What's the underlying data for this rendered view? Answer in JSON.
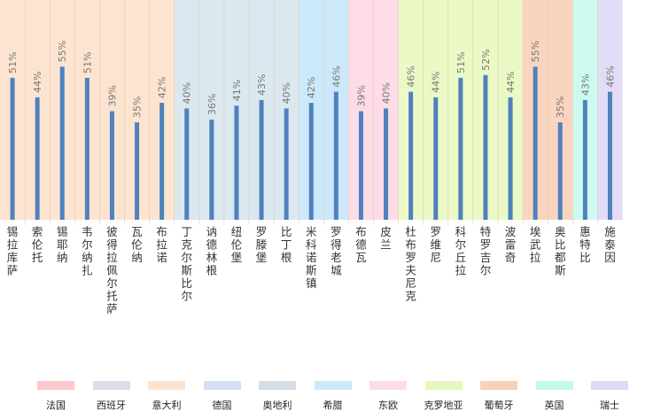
{
  "chart_data": {
    "type": "bar",
    "categories": [
      "锡拉库萨",
      "索伦托",
      "锡耶纳",
      "韦尔纳扎",
      "彼得拉佩尔托萨",
      "瓦伦纳",
      "布拉诺",
      "丁克尔斯比尔",
      "讷德林根",
      "纽伦堡",
      "罗滕堡",
      "比丁根",
      "米科诺斯镇",
      "罗得老城",
      "布德瓦",
      "皮兰",
      "杜布罗夫尼克",
      "罗维尼",
      "科尔丘拉",
      "特罗吉尔",
      "波雷奇",
      "埃武拉",
      "奥比都斯",
      "惠特比",
      "施泰因"
    ],
    "values": [
      51,
      44,
      55,
      51,
      39,
      35,
      42,
      40,
      36,
      41,
      43,
      40,
      42,
      46,
      39,
      40,
      46,
      44,
      51,
      52,
      44,
      55,
      35,
      43,
      46
    ],
    "value_labels": [
      "51%",
      "44%",
      "55%",
      "51%",
      "39%",
      "35%",
      "42%",
      "40%",
      "36%",
      "41%",
      "43%",
      "40%",
      "42%",
      "46%",
      "39%",
      "40%",
      "46%",
      "44%",
      "51%",
      "52%",
      "44%",
      "55%",
      "35%",
      "43%",
      "46%"
    ],
    "ylim": [
      0,
      60
    ],
    "bar_color": "#4f81bd",
    "groups": [
      {
        "name": "意大利",
        "start": 0,
        "count": 7,
        "color": "#fde4d0"
      },
      {
        "name": "德国",
        "start": 7,
        "count": 5,
        "color": "#dbe8f0"
      },
      {
        "name": "希腊",
        "start": 12,
        "count": 2,
        "color": "#cce9fb"
      },
      {
        "name": "东欧",
        "start": 14,
        "count": 2,
        "color": "#fddce8"
      },
      {
        "name": "克罗地亚",
        "start": 16,
        "count": 5,
        "color": "#eaf9c6"
      },
      {
        "name": "葡萄牙",
        "start": 21,
        "count": 2,
        "color": "#f9d5bf"
      },
      {
        "name": "英国",
        "start": 23,
        "count": 1,
        "color": "#cdfaf0"
      },
      {
        "name": "瑞士",
        "start": 24,
        "count": 1,
        "color": "#e3dcf6"
      }
    ],
    "legend": [
      {
        "label": "法国",
        "color": "#fbc9cc"
      },
      {
        "label": "西班牙",
        "color": "#e1dae8"
      },
      {
        "label": "意大利",
        "color": "#fde4d0"
      },
      {
        "label": "德国",
        "color": "#d3e0f2"
      },
      {
        "label": "奥地利",
        "color": "#d4dce6"
      },
      {
        "label": "希腊",
        "color": "#cce9fb"
      },
      {
        "label": "东欧",
        "color": "#fddce8"
      },
      {
        "label": "克罗地亚",
        "color": "#e6f7bf"
      },
      {
        "label": "葡萄牙",
        "color": "#f9d1b8"
      },
      {
        "label": "英国",
        "color": "#c2faeb"
      },
      {
        "label": "瑞士",
        "color": "#ddd9f7"
      }
    ],
    "legend_position": "bottom"
  }
}
